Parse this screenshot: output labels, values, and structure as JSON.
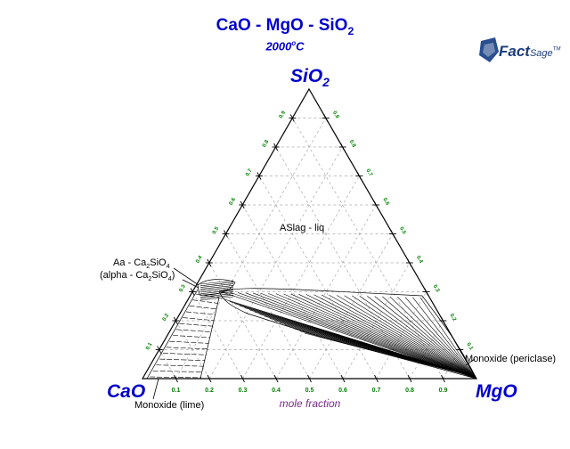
{
  "title": {
    "formula": [
      "CaO - MgO - SiO",
      "2"
    ],
    "temperature": [
      "2000",
      "o",
      "C"
    ]
  },
  "corners": {
    "top": [
      "SiO",
      "2"
    ],
    "left": "CaO",
    "right": "MgO"
  },
  "axis_label": "mole fraction",
  "tick_labels": {
    "bottom": [
      "0.9",
      "0.8",
      "0.7",
      "0.6",
      "0.5",
      "0.4",
      "0.3",
      "0.2",
      "0.1"
    ],
    "left": [
      "0.1",
      "0.2",
      "0.3",
      "0.4",
      "0.5",
      "0.6",
      "0.7",
      "0.8",
      "0.9"
    ],
    "right": [
      "0.9",
      "0.8",
      "0.7",
      "0.6",
      "0.5",
      "0.4",
      "0.3",
      "0.2",
      "0.1"
    ]
  },
  "regions": {
    "liquid": "ASlag - liq",
    "aa_line1": [
      "Aa - Ca",
      "2",
      "SiO",
      "4"
    ],
    "aa_line2": [
      "(alpha - Ca",
      "2",
      "SiO",
      "4",
      ")"
    ],
    "periclase": "Monoxide (periclase)",
    "lime": "Monoxide (lime)"
  },
  "logo": {
    "text": "Fact",
    "suffix": "Sage",
    "tm": "TM"
  },
  "colors": {
    "title": "#0000cc",
    "ticks": "#008000",
    "grid": "#aaaaaa",
    "axis_label": "#7a2a8a"
  }
}
